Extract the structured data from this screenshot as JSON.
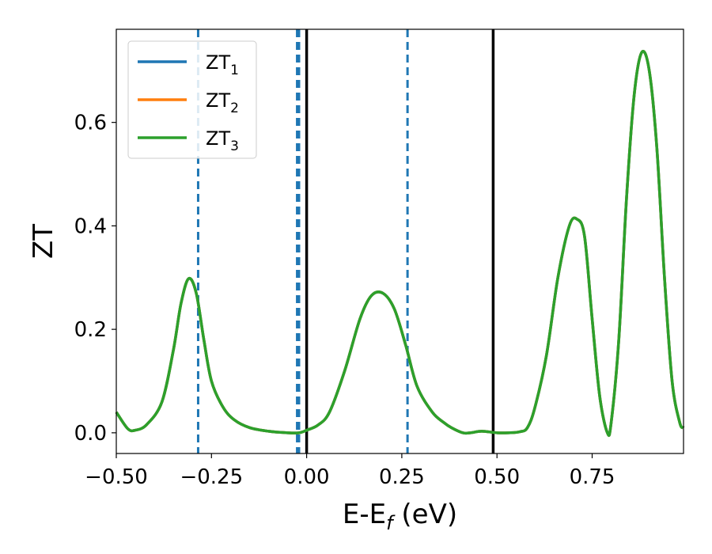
{
  "chart_data": {
    "type": "line",
    "xlabel": "E-E",
    "xlabel_sub": "f",
    "xlabel_unit": " (eV)",
    "ylabel": "ZT",
    "xlim": [
      -0.5,
      0.99
    ],
    "ylim": [
      -0.04,
      0.78
    ],
    "xticks": [
      -0.5,
      -0.25,
      0.0,
      0.25,
      0.5,
      0.75
    ],
    "xtick_labels": [
      "−0.50",
      "−0.25",
      "0.00",
      "0.25",
      "0.50",
      "0.75"
    ],
    "yticks": [
      0.0,
      0.2,
      0.4,
      0.6
    ],
    "ytick_labels": [
      "0.0",
      "0.2",
      "0.4",
      "0.6"
    ],
    "grid": false,
    "legend_position": "top-left",
    "series": [
      {
        "name": "ZT",
        "subscript": "1",
        "color": "#1f77b4"
      },
      {
        "name": "ZT",
        "subscript": "2",
        "color": "#ff7f0e"
      },
      {
        "name": "ZT",
        "subscript": "3",
        "color": "#2ca02c"
      }
    ],
    "x": [
      -0.5,
      -0.47,
      -0.45,
      -0.42,
      -0.38,
      -0.35,
      -0.33,
      -0.31,
      -0.29,
      -0.27,
      -0.25,
      -0.22,
      -0.19,
      -0.15,
      -0.1,
      -0.05,
      -0.02,
      0.0,
      0.03,
      0.06,
      0.1,
      0.14,
      0.17,
      0.2,
      0.23,
      0.26,
      0.29,
      0.33,
      0.36,
      0.38,
      0.41,
      0.43,
      0.46,
      0.5,
      0.53,
      0.56,
      0.58,
      0.6,
      0.63,
      0.66,
      0.69,
      0.71,
      0.73,
      0.75,
      0.77,
      0.79,
      0.8,
      0.82,
      0.84,
      0.86,
      0.88,
      0.9,
      0.92,
      0.94,
      0.96,
      0.98,
      0.99
    ],
    "y": [
      0.04,
      0.008,
      0.005,
      0.016,
      0.06,
      0.16,
      0.25,
      0.298,
      0.27,
      0.18,
      0.1,
      0.05,
      0.025,
      0.01,
      0.003,
      0.0,
      0.0,
      0.005,
      0.015,
      0.04,
      0.12,
      0.22,
      0.265,
      0.27,
      0.24,
      0.17,
      0.09,
      0.04,
      0.02,
      0.01,
      0.0,
      0.0,
      0.003,
      0.0,
      0.0,
      0.002,
      0.01,
      0.05,
      0.15,
      0.3,
      0.4,
      0.413,
      0.38,
      0.22,
      0.07,
      0.0,
      0.02,
      0.18,
      0.45,
      0.65,
      0.735,
      0.7,
      0.55,
      0.3,
      0.1,
      0.02,
      0.01
    ],
    "vlines_dashed": [
      -0.285,
      -0.025,
      -0.02,
      0.265
    ],
    "vlines_dashed_color": "#1f77b4",
    "vlines_solid": [
      0.0,
      0.49
    ],
    "vlines_solid_color": "#000000"
  }
}
